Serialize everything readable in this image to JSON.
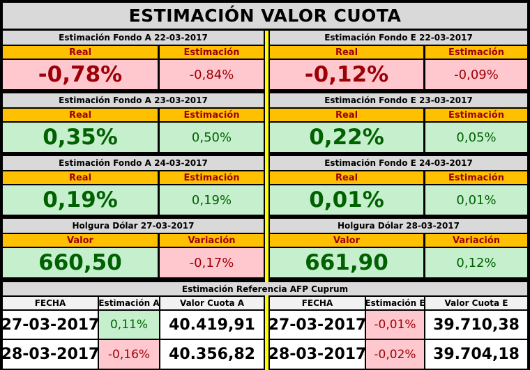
{
  "title": "ESTIMACIÓN VALOR CUOTA",
  "colors": {
    "header": "#ffc000",
    "negative_bg": "#ffc7ce",
    "positive_bg": "#c6efce",
    "separator": "#ffff00"
  },
  "blocks": [
    {
      "left": {
        "title": "Estimación Fondo A  22-03-2017",
        "h1": "Real",
        "h2": "Estimación",
        "v1": "-0,78%",
        "v2": "-0,84%"
      },
      "right": {
        "title": "Estimación Fondo E  22-03-2017",
        "h1": "Real",
        "h2": "Estimación",
        "v1": "-0,12%",
        "v2": "-0,09%"
      }
    },
    {
      "left": {
        "title": "Estimación Fondo A  23-03-2017",
        "h1": "Real",
        "h2": "Estimación",
        "v1": "0,35%",
        "v2": "0,50%"
      },
      "right": {
        "title": "Estimación Fondo E  23-03-2017",
        "h1": "Real",
        "h2": "Estimación",
        "v1": "0,22%",
        "v2": "0,05%"
      }
    },
    {
      "left": {
        "title": "Estimación Fondo A  24-03-2017",
        "h1": "Real",
        "h2": "Estimación",
        "v1": "0,19%",
        "v2": "0,19%"
      },
      "right": {
        "title": "Estimación Fondo E  24-03-2017",
        "h1": "Real",
        "h2": "Estimación",
        "v1": "0,01%",
        "v2": "0,01%"
      }
    },
    {
      "left": {
        "title": "Holgura Dólar  27-03-2017",
        "h1": "Valor",
        "h2": "Variación",
        "v1": "660,50",
        "v2": "-0,17%"
      },
      "right": {
        "title": "Holgura Dólar  28-03-2017",
        "h1": "Valor",
        "h2": "Variación",
        "v1": "661,90",
        "v2": "0,12%"
      }
    }
  ],
  "reference": {
    "title": "Estimación Referencia AFP Cuprum",
    "left_headers": [
      "FECHA",
      "Estimación A",
      "Valor Cuota A"
    ],
    "right_headers": [
      "FECHA",
      "Estimación E",
      "Valor Cuota E"
    ],
    "rows": [
      {
        "fecha_a": "27-03-2017",
        "est_a": "0,11%",
        "cuota_a": "40.419,91",
        "fecha_e": "27-03-2017",
        "est_e": "-0,01%",
        "cuota_e": "39.710,38"
      },
      {
        "fecha_a": "28-03-2017",
        "est_a": "-0,16%",
        "cuota_a": "40.356,82",
        "fecha_e": "28-03-2017",
        "est_e": "-0,02%",
        "cuota_e": "39.704,18"
      }
    ]
  }
}
